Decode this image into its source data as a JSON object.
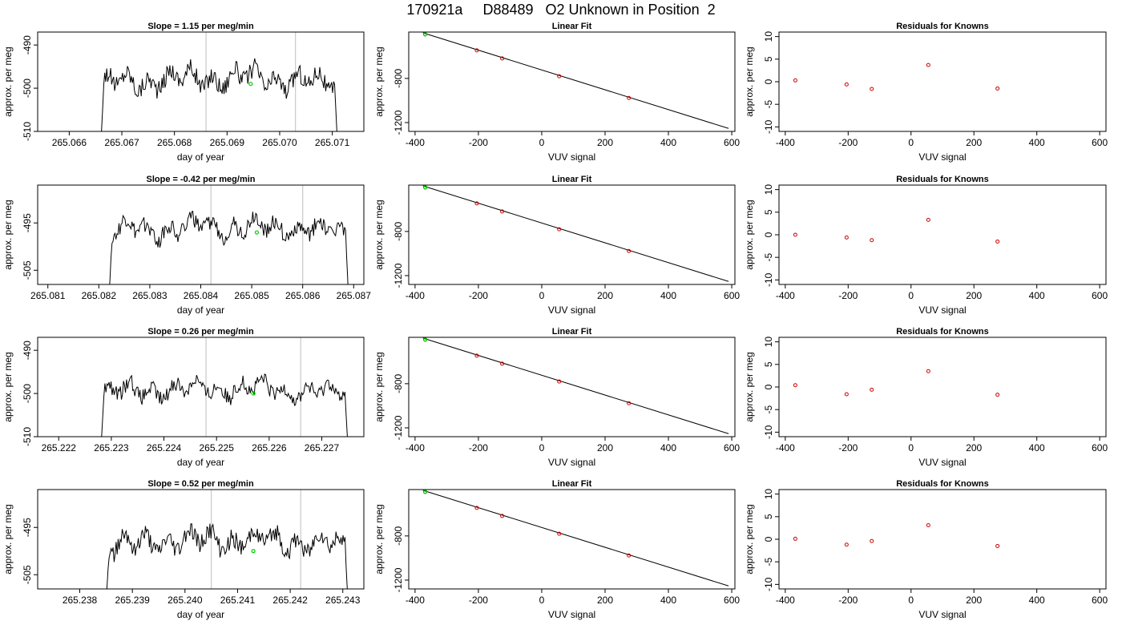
{
  "figure_title": "170921a     D88489   O2 Unknown in Position  2",
  "colors": {
    "trace": "#000000",
    "reference_line": "#c8c8c8",
    "unknown_point": "#00cc00",
    "known_point": "#cc0000",
    "fit_line": "#000000"
  },
  "chart_data": [
    {
      "type": "line",
      "panel": "time-series",
      "row": 1,
      "title": "Slope =  1.15  per meg/min",
      "xlabel": "day of year",
      "ylabel": "approx. per meg",
      "xlim": [
        265.0654,
        265.0716
      ],
      "ylim": [
        -510,
        -487
      ],
      "xticks": [
        265.066,
        265.067,
        265.068,
        265.069,
        265.07,
        265.071
      ],
      "xticklabels": [
        "265.066",
        "265.067",
        "265.068",
        "265.069",
        "265.070",
        "265.071"
      ],
      "yticks": [
        -510,
        -500,
        -490
      ],
      "yticklabels": [
        "-510",
        "-500",
        "-490"
      ],
      "vlines": [
        265.0686,
        265.0703
      ],
      "trace_x_range": [
        265.0666,
        265.0711
      ],
      "trace_y_range": [
        -505,
        -493
      ],
      "trace_mean": -499,
      "unknown_point": {
        "x": 265.06945,
        "y": -499
      }
    },
    {
      "type": "scatter",
      "panel": "linear-fit",
      "row": 1,
      "title": "Linear Fit",
      "xlabel": "VUV signal",
      "ylabel": "approx. per meg",
      "xlim": [
        -420,
        610
      ],
      "ylim": [
        -1280,
        -380
      ],
      "xticks": [
        -400,
        -200,
        0,
        200,
        400,
        600
      ],
      "xticklabels": [
        "-400",
        "-200",
        "0",
        "200",
        "400",
        "600"
      ],
      "yticks": [
        -1200,
        -800
      ],
      "yticklabels": [
        "-1200",
        "-800"
      ],
      "fit_line": {
        "x1": -375,
        "y1": -387,
        "x2": 590,
        "y2": -1253
      },
      "knowns": {
        "x": [
          -368,
          -205,
          -125,
          55,
          275
        ],
        "y": [
          -400,
          -546,
          -619,
          -780,
          -977
        ]
      },
      "unknown": {
        "x": -368,
        "y": -401
      }
    },
    {
      "type": "scatter",
      "panel": "residuals",
      "row": 1,
      "title": "Residuals for Knowns",
      "xlabel": "VUV signal",
      "ylabel": "approx. per meg",
      "xlim": [
        -420,
        620
      ],
      "ylim": [
        -11,
        11
      ],
      "xticks": [
        -400,
        -200,
        0,
        200,
        400,
        600
      ],
      "xticklabels": [
        "-400",
        "-200",
        "0",
        "200",
        "400",
        "600"
      ],
      "yticks": [
        -10,
        -5,
        0,
        5,
        10
      ],
      "yticklabels": [
        "-10",
        "-5",
        "0",
        "5",
        "10"
      ],
      "x": [
        -368,
        -205,
        -125,
        55,
        275
      ],
      "y": [
        0.3,
        -0.6,
        -1.6,
        3.7,
        -1.5
      ]
    },
    {
      "type": "line",
      "panel": "time-series",
      "row": 2,
      "title": "Slope =  -0.42  per meg/min",
      "xlabel": "day of year",
      "ylabel": "approx. per meg",
      "xlim": [
        265.0808,
        265.0872
      ],
      "ylim": [
        -508,
        -487
      ],
      "xticks": [
        265.081,
        265.082,
        265.083,
        265.084,
        265.085,
        265.086,
        265.087
      ],
      "xticklabels": [
        "265.081",
        "265.082",
        "265.083",
        "265.084",
        "265.085",
        "265.086",
        "265.087"
      ],
      "yticks": [
        -505,
        -495
      ],
      "yticklabels": [
        "-505",
        "-495"
      ],
      "vlines": [
        265.0842,
        265.086
      ],
      "trace_x_range": [
        265.0822,
        265.0869
      ],
      "trace_y_range": [
        -502,
        -492
      ],
      "trace_mean": -497,
      "unknown_point": {
        "x": 265.0851,
        "y": -497
      }
    },
    {
      "type": "scatter",
      "panel": "linear-fit",
      "row": 2,
      "title": "Linear Fit",
      "xlabel": "VUV signal",
      "ylabel": "approx. per meg",
      "xlim": [
        -420,
        610
      ],
      "ylim": [
        -1280,
        -380
      ],
      "xticks": [
        -400,
        -200,
        0,
        200,
        400,
        600
      ],
      "xticklabels": [
        "-400",
        "-200",
        "0",
        "200",
        "400",
        "600"
      ],
      "yticks": [
        -1200,
        -800
      ],
      "yticklabels": [
        "-1200",
        "-800"
      ],
      "fit_line": {
        "x1": -375,
        "y1": -387,
        "x2": 590,
        "y2": -1253
      },
      "knowns": {
        "x": [
          -368,
          -205,
          -125,
          55,
          275
        ],
        "y": [
          -400,
          -546,
          -619,
          -780,
          -977
        ]
      },
      "unknown": {
        "x": -368,
        "y": -401
      }
    },
    {
      "type": "scatter",
      "panel": "residuals",
      "row": 2,
      "title": "Residuals for Knowns",
      "xlabel": "VUV signal",
      "ylabel": "approx. per meg",
      "xlim": [
        -420,
        620
      ],
      "ylim": [
        -11,
        11
      ],
      "xticks": [
        -400,
        -200,
        0,
        200,
        400,
        600
      ],
      "xticklabels": [
        "-400",
        "-200",
        "0",
        "200",
        "400",
        "600"
      ],
      "yticks": [
        -10,
        -5,
        0,
        5,
        10
      ],
      "yticklabels": [
        "-10",
        "-5",
        "0",
        "5",
        "10"
      ],
      "x": [
        -368,
        -205,
        -125,
        55,
        275
      ],
      "y": [
        0.0,
        -0.6,
        -1.2,
        3.3,
        -1.5
      ]
    },
    {
      "type": "line",
      "panel": "time-series",
      "row": 3,
      "title": "Slope =  0.26  per meg/min",
      "xlabel": "day of year",
      "ylabel": "approx. per meg",
      "xlim": [
        265.2216,
        265.2278
      ],
      "ylim": [
        -510,
        -487
      ],
      "xticks": [
        265.222,
        265.223,
        265.224,
        265.225,
        265.226,
        265.227
      ],
      "xticklabels": [
        "265.222",
        "265.223",
        "265.224",
        "265.225",
        "265.226",
        "265.227"
      ],
      "yticks": [
        -510,
        -500,
        -490
      ],
      "yticklabels": [
        "-510",
        "-500",
        "-490"
      ],
      "vlines": [
        265.2248,
        265.2266
      ],
      "trace_x_range": [
        265.2228,
        265.2275
      ],
      "trace_y_range": [
        -505,
        -495
      ],
      "trace_mean": -500,
      "unknown_point": {
        "x": 265.2257,
        "y": -500
      }
    },
    {
      "type": "scatter",
      "panel": "linear-fit",
      "row": 3,
      "title": "Linear Fit",
      "xlabel": "VUV signal",
      "ylabel": "approx. per meg",
      "xlim": [
        -420,
        610
      ],
      "ylim": [
        -1280,
        -380
      ],
      "xticks": [
        -400,
        -200,
        0,
        200,
        400,
        600
      ],
      "xticklabels": [
        "-400",
        "-200",
        "0",
        "200",
        "400",
        "600"
      ],
      "yticks": [
        -1200,
        -800
      ],
      "yticklabels": [
        "-1200",
        "-800"
      ],
      "fit_line": {
        "x1": -375,
        "y1": -387,
        "x2": 590,
        "y2": -1253
      },
      "knowns": {
        "x": [
          -368,
          -205,
          -125,
          55,
          275
        ],
        "y": [
          -400,
          -546,
          -619,
          -780,
          -977
        ]
      },
      "unknown": {
        "x": -368,
        "y": -401
      }
    },
    {
      "type": "scatter",
      "panel": "residuals",
      "row": 3,
      "title": "Residuals for Knowns",
      "xlabel": "VUV signal",
      "ylabel": "approx. per meg",
      "xlim": [
        -420,
        620
      ],
      "ylim": [
        -11,
        11
      ],
      "xticks": [
        -400,
        -200,
        0,
        200,
        400,
        600
      ],
      "xticklabels": [
        "-400",
        "-200",
        "0",
        "200",
        "400",
        "600"
      ],
      "yticks": [
        -10,
        -5,
        0,
        5,
        10
      ],
      "yticklabels": [
        "-10",
        "-5",
        "0",
        "5",
        "10"
      ],
      "x": [
        -368,
        -205,
        -125,
        55,
        275
      ],
      "y": [
        0.4,
        -1.6,
        -0.6,
        3.5,
        -1.7
      ]
    },
    {
      "type": "line",
      "panel": "time-series",
      "row": 4,
      "title": "Slope =  0.52  per meg/min",
      "xlabel": "day of year",
      "ylabel": "approx. per meg",
      "xlim": [
        265.2372,
        265.2434
      ],
      "ylim": [
        -508,
        -487
      ],
      "xticks": [
        265.238,
        265.239,
        265.24,
        265.241,
        265.242,
        265.243
      ],
      "xticklabels": [
        "265.238",
        "265.239",
        "265.240",
        "265.241",
        "265.242",
        "265.243"
      ],
      "yticks": [
        -505,
        -495
      ],
      "yticklabels": [
        "-505",
        "-495"
      ],
      "vlines": [
        265.2405,
        265.2422
      ],
      "trace_x_range": [
        265.2385,
        265.2431
      ],
      "trace_y_range": [
        -503,
        -492
      ],
      "trace_mean": -499,
      "unknown_point": {
        "x": 265.2413,
        "y": -500
      }
    },
    {
      "type": "scatter",
      "panel": "linear-fit",
      "row": 4,
      "title": "Linear Fit",
      "xlabel": "VUV signal",
      "ylabel": "approx. per meg",
      "xlim": [
        -420,
        610
      ],
      "ylim": [
        -1280,
        -380
      ],
      "xticks": [
        -400,
        -200,
        0,
        200,
        400,
        600
      ],
      "xticklabels": [
        "-400",
        "-200",
        "0",
        "200",
        "400",
        "600"
      ],
      "yticks": [
        -1200,
        -800
      ],
      "yticklabels": [
        "-1200",
        "-800"
      ],
      "fit_line": {
        "x1": -375,
        "y1": -387,
        "x2": 590,
        "y2": -1253
      },
      "knowns": {
        "x": [
          -368,
          -205,
          -125,
          55,
          275
        ],
        "y": [
          -400,
          -546,
          -619,
          -780,
          -977
        ]
      },
      "unknown": {
        "x": -368,
        "y": -401
      }
    },
    {
      "type": "scatter",
      "panel": "residuals",
      "row": 4,
      "title": "Residuals for Knowns",
      "xlabel": "VUV signal",
      "ylabel": "approx. per meg",
      "xlim": [
        -420,
        620
      ],
      "ylim": [
        -11,
        11
      ],
      "xticks": [
        -400,
        -200,
        0,
        200,
        400,
        600
      ],
      "xticklabels": [
        "-400",
        "-200",
        "0",
        "200",
        "400",
        "600"
      ],
      "yticks": [
        -10,
        -5,
        0,
        5,
        10
      ],
      "yticklabels": [
        "-10",
        "-5",
        "0",
        "5",
        "10"
      ],
      "x": [
        -368,
        -205,
        -125,
        55,
        275
      ],
      "y": [
        0.1,
        -1.2,
        -0.4,
        3.1,
        -1.5
      ]
    }
  ]
}
